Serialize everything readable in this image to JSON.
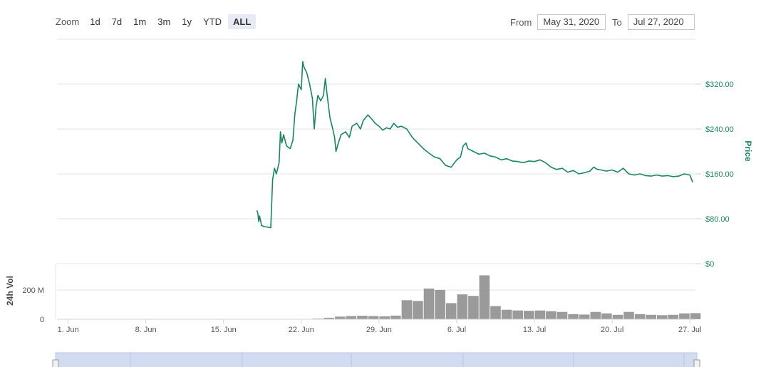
{
  "zoom": {
    "label": "Zoom",
    "buttons": [
      "1d",
      "7d",
      "1m",
      "3m",
      "1y",
      "YTD",
      "ALL"
    ],
    "active": "ALL"
  },
  "range": {
    "from_label": "From",
    "from_value": "May 31, 2020",
    "to_label": "To",
    "to_value": "Jul 27, 2020"
  },
  "colors": {
    "price": "#16875f",
    "volume": "#888888",
    "grid": "#e6e6e6",
    "navigator": "#d2dcf0"
  },
  "chart_data": [
    {
      "type": "line",
      "ylabel": "Price",
      "ylim": [
        0,
        400
      ],
      "yticks": [
        0,
        80,
        160,
        240,
        320
      ],
      "ytick_labels": [
        "$0",
        "$80.00",
        "$160.00",
        "$240.00",
        "$320.00"
      ],
      "y_axis_position": "right",
      "grid": true,
      "series": [
        {
          "points": [
            [
              "2020-06-18 00:00",
              95
            ],
            [
              "2020-06-18 02:00",
              90
            ],
            [
              "2020-06-18 04:00",
              75
            ],
            [
              "2020-06-18 06:00",
              85
            ],
            [
              "2020-06-18 10:00",
              68
            ],
            [
              "2020-06-18 16:00",
              66
            ],
            [
              "2020-06-19 00:00",
              65
            ],
            [
              "2020-06-19 06:00",
              64
            ],
            [
              "2020-06-19 10:00",
              150
            ],
            [
              "2020-06-19 14:00",
              170
            ],
            [
              "2020-06-19 18:00",
              160
            ],
            [
              "2020-06-20 00:00",
              180
            ],
            [
              "2020-06-20 03:00",
              235
            ],
            [
              "2020-06-20 06:00",
              215
            ],
            [
              "2020-06-20 10:00",
              230
            ],
            [
              "2020-06-20 16:00",
              210
            ],
            [
              "2020-06-21 00:00",
              205
            ],
            [
              "2020-06-21 06:00",
              220
            ],
            [
              "2020-06-21 10:00",
              265
            ],
            [
              "2020-06-21 14:00",
              290
            ],
            [
              "2020-06-21 18:00",
              320
            ],
            [
              "2020-06-22 00:00",
              310
            ],
            [
              "2020-06-22 03:00",
              360
            ],
            [
              "2020-06-22 06:00",
              350
            ],
            [
              "2020-06-22 12:00",
              340
            ],
            [
              "2020-06-22 18:00",
              320
            ],
            [
              "2020-06-23 00:00",
              295
            ],
            [
              "2020-06-23 04:00",
              240
            ],
            [
              "2020-06-23 08:00",
              280
            ],
            [
              "2020-06-23 12:00",
              300
            ],
            [
              "2020-06-23 18:00",
              290
            ],
            [
              "2020-06-24 00:00",
              300
            ],
            [
              "2020-06-24 04:00",
              330
            ],
            [
              "2020-06-24 08:00",
              300
            ],
            [
              "2020-06-24 14:00",
              260
            ],
            [
              "2020-06-24 20:00",
              240
            ],
            [
              "2020-06-25 00:00",
              225
            ],
            [
              "2020-06-25 03:00",
              200
            ],
            [
              "2020-06-25 08:00",
              215
            ],
            [
              "2020-06-25 14:00",
              230
            ],
            [
              "2020-06-26 00:00",
              235
            ],
            [
              "2020-06-26 08:00",
              225
            ],
            [
              "2020-06-26 14:00",
              245
            ],
            [
              "2020-06-27 00:00",
              250
            ],
            [
              "2020-06-27 08:00",
              240
            ],
            [
              "2020-06-27 14:00",
              255
            ],
            [
              "2020-06-28 00:00",
              265
            ],
            [
              "2020-06-28 08:00",
              258
            ],
            [
              "2020-06-28 16:00",
              250
            ],
            [
              "2020-06-29 00:00",
              245
            ],
            [
              "2020-06-29 08:00",
              238
            ],
            [
              "2020-06-29 16:00",
              242
            ],
            [
              "2020-06-30 00:00",
              240
            ],
            [
              "2020-06-30 08:00",
              250
            ],
            [
              "2020-06-30 16:00",
              243
            ],
            [
              "2020-07-01 00:00",
              245
            ],
            [
              "2020-07-01 12:00",
              240
            ],
            [
              "2020-07-02 00:00",
              225
            ],
            [
              "2020-07-02 12:00",
              215
            ],
            [
              "2020-07-03 00:00",
              205
            ],
            [
              "2020-07-03 12:00",
              197
            ],
            [
              "2020-07-04 00:00",
              190
            ],
            [
              "2020-07-04 12:00",
              187
            ],
            [
              "2020-07-05 00:00",
              175
            ],
            [
              "2020-07-05 12:00",
              172
            ],
            [
              "2020-07-06 00:00",
              185
            ],
            [
              "2020-07-06 08:00",
              190
            ],
            [
              "2020-07-06 14:00",
              210
            ],
            [
              "2020-07-06 20:00",
              215
            ],
            [
              "2020-07-07 00:00",
              205
            ],
            [
              "2020-07-07 12:00",
              200
            ],
            [
              "2020-07-08 00:00",
              195
            ],
            [
              "2020-07-08 12:00",
              197
            ],
            [
              "2020-07-09 00:00",
              192
            ],
            [
              "2020-07-09 12:00",
              190
            ],
            [
              "2020-07-10 00:00",
              185
            ],
            [
              "2020-07-10 12:00",
              187
            ],
            [
              "2020-07-11 00:00",
              183
            ],
            [
              "2020-07-11 12:00",
              182
            ],
            [
              "2020-07-12 00:00",
              180
            ],
            [
              "2020-07-12 12:00",
              183
            ],
            [
              "2020-07-13 00:00",
              182
            ],
            [
              "2020-07-13 12:00",
              185
            ],
            [
              "2020-07-14 00:00",
              180
            ],
            [
              "2020-07-14 12:00",
              172
            ],
            [
              "2020-07-15 00:00",
              168
            ],
            [
              "2020-07-15 12:00",
              170
            ],
            [
              "2020-07-16 00:00",
              163
            ],
            [
              "2020-07-16 12:00",
              166
            ],
            [
              "2020-07-17 00:00",
              160
            ],
            [
              "2020-07-17 12:00",
              162
            ],
            [
              "2020-07-18 00:00",
              165
            ],
            [
              "2020-07-18 08:00",
              172
            ],
            [
              "2020-07-18 16:00",
              168
            ],
            [
              "2020-07-19 00:00",
              167
            ],
            [
              "2020-07-19 12:00",
              165
            ],
            [
              "2020-07-20 00:00",
              167
            ],
            [
              "2020-07-20 12:00",
              163
            ],
            [
              "2020-07-21 00:00",
              170
            ],
            [
              "2020-07-21 06:00",
              165
            ],
            [
              "2020-07-21 12:00",
              160
            ],
            [
              "2020-07-22 00:00",
              158
            ],
            [
              "2020-07-22 12:00",
              160
            ],
            [
              "2020-07-23 00:00",
              157
            ],
            [
              "2020-07-23 12:00",
              156
            ],
            [
              "2020-07-24 00:00",
              158
            ],
            [
              "2020-07-24 12:00",
              156
            ],
            [
              "2020-07-25 00:00",
              157
            ],
            [
              "2020-07-25 12:00",
              155
            ],
            [
              "2020-07-26 00:00",
              156
            ],
            [
              "2020-07-26 12:00",
              160
            ],
            [
              "2020-07-27 00:00",
              158
            ],
            [
              "2020-07-27 06:00",
              145
            ]
          ]
        }
      ]
    },
    {
      "type": "bar",
      "ylabel": "24h Vol",
      "ylim": [
        0,
        380
      ],
      "yticks": [
        0,
        200
      ],
      "ytick_labels": [
        "0",
        "200 M"
      ],
      "y_axis_position": "left",
      "grid": true,
      "x_axis": {
        "tick_labels": [
          "1. Jun",
          "8. Jun",
          "15. Jun",
          "22. Jun",
          "29. Jun",
          "6. Jul",
          "13. Jul",
          "20. Jul",
          "27. Jul"
        ]
      },
      "series": [
        {
          "points": [
            [
              "2020-06-23",
              5
            ],
            [
              "2020-06-24",
              10
            ],
            [
              "2020-06-25",
              18
            ],
            [
              "2020-06-26",
              22
            ],
            [
              "2020-06-27",
              24
            ],
            [
              "2020-06-28",
              22
            ],
            [
              "2020-06-29",
              20
            ],
            [
              "2020-06-30",
              25
            ],
            [
              "2020-07-01",
              130
            ],
            [
              "2020-07-02",
              125
            ],
            [
              "2020-07-03",
              210
            ],
            [
              "2020-07-04",
              200
            ],
            [
              "2020-07-05",
              110
            ],
            [
              "2020-07-06",
              170
            ],
            [
              "2020-07-07",
              160
            ],
            [
              "2020-07-08",
              300
            ],
            [
              "2020-07-09",
              90
            ],
            [
              "2020-07-10",
              65
            ],
            [
              "2020-07-11",
              60
            ],
            [
              "2020-07-12",
              58
            ],
            [
              "2020-07-13",
              60
            ],
            [
              "2020-07-14",
              55
            ],
            [
              "2020-07-15",
              50
            ],
            [
              "2020-07-16",
              35
            ],
            [
              "2020-07-17",
              32
            ],
            [
              "2020-07-18",
              50
            ],
            [
              "2020-07-19",
              40
            ],
            [
              "2020-07-20",
              30
            ],
            [
              "2020-07-21",
              50
            ],
            [
              "2020-07-22",
              35
            ],
            [
              "2020-07-23",
              30
            ],
            [
              "2020-07-24",
              28
            ],
            [
              "2020-07-25",
              30
            ],
            [
              "2020-07-26",
              40
            ],
            [
              "2020-07-27",
              42
            ]
          ]
        }
      ]
    }
  ]
}
